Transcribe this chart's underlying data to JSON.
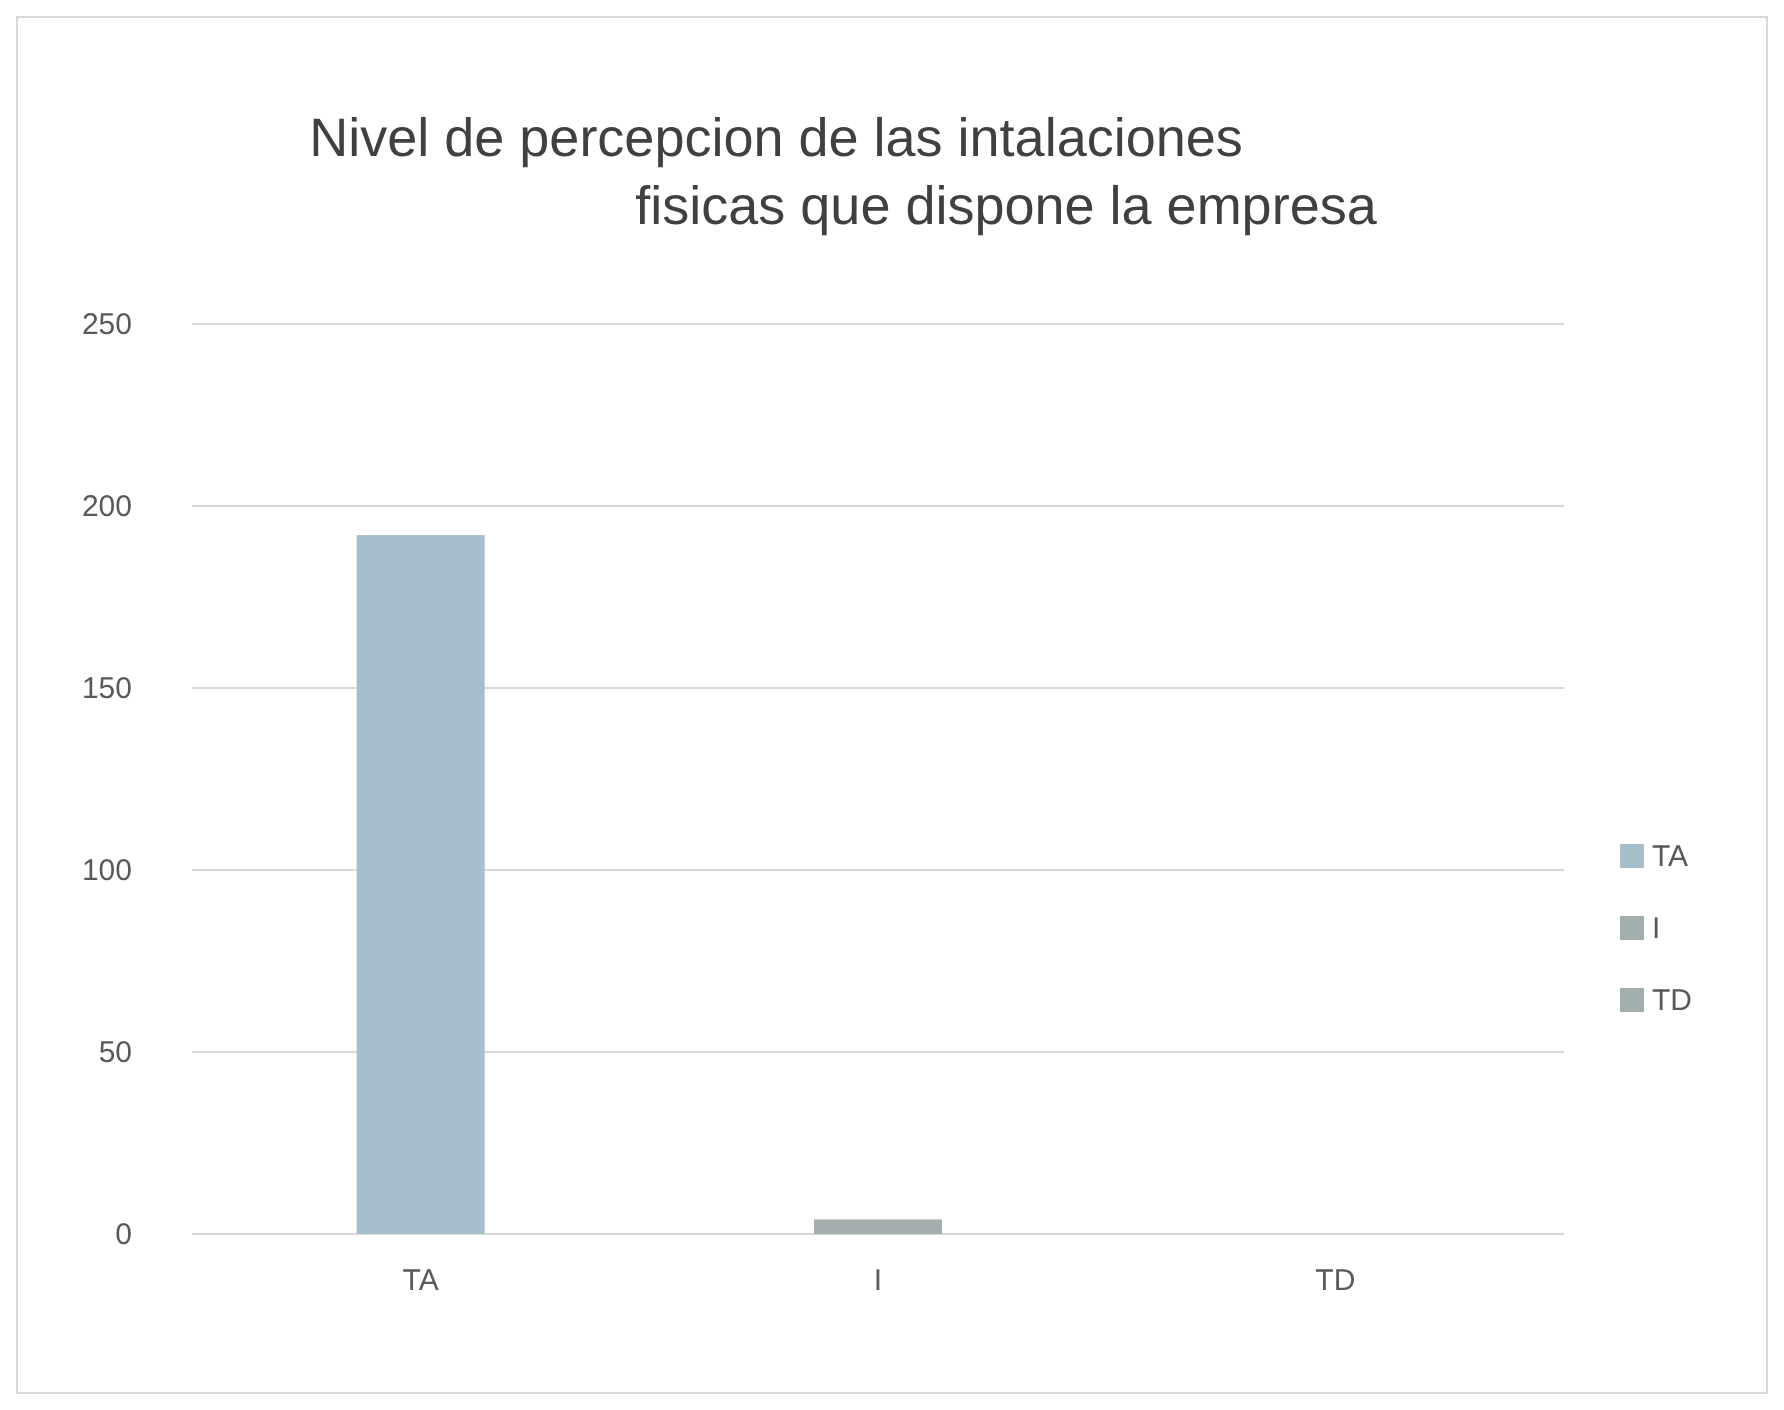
{
  "chart_data": {
    "type": "bar",
    "title": "Nivel de percepcion de las intalaciones\nfisicas que dispone la empresa",
    "categories": [
      "TA",
      "I",
      "TD"
    ],
    "stacked": true,
    "series": [
      {
        "name": "TA",
        "color": "#a5bfcd",
        "values": [
          192,
          null,
          null
        ]
      },
      {
        "name": "I",
        "color": "#a5aeae",
        "values": [
          null,
          4,
          null
        ]
      },
      {
        "name": "TD",
        "color": "#a3aeae",
        "values": [
          null,
          null,
          0
        ]
      }
    ],
    "ylim": [
      0,
      250
    ],
    "yticks": [
      0,
      50,
      100,
      150,
      200,
      250
    ],
    "grid": "y",
    "legend": "right"
  }
}
